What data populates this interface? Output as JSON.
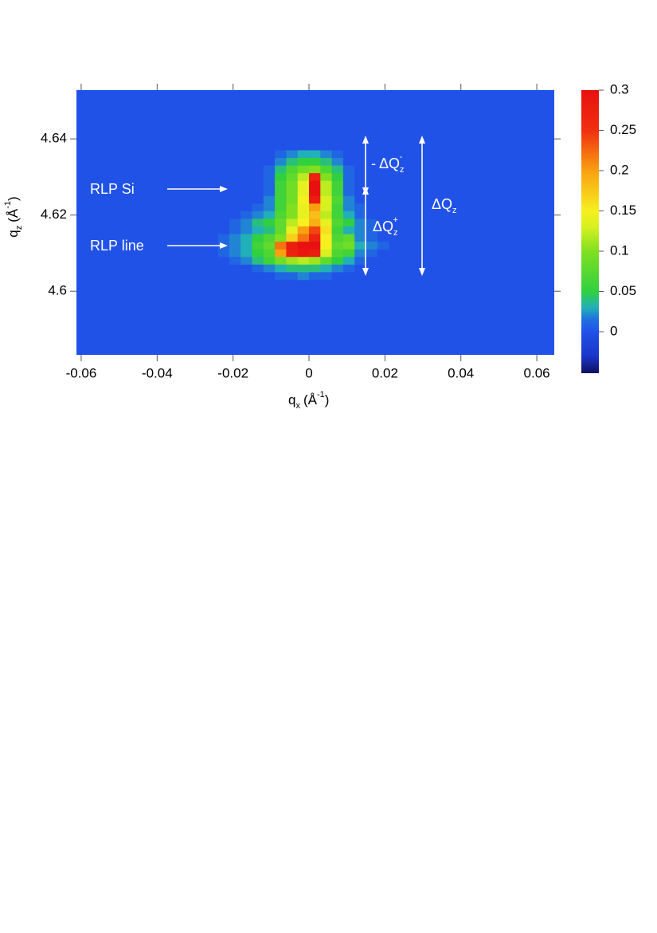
{
  "chart_data": {
    "type": "heatmap",
    "xlabel": {
      "symbol": "q",
      "subscript": "x",
      "unit": "(Å",
      "exponent": "-1",
      "close": ")"
    },
    "ylabel": {
      "symbol": "q",
      "subscript": "z",
      "unit": "(Å",
      "exponent": "-1",
      "close": ")"
    },
    "xlim": [
      -0.06125,
      0.0646
    ],
    "xticks": [
      -0.06,
      -0.04,
      -0.02,
      0,
      0.02,
      0.04,
      0.06
    ],
    "ylim": [
      4.5833,
      4.6528
    ],
    "yticks": [
      4.6,
      4.62,
      4.64
    ],
    "clim": [
      -0.0515,
      0.3
    ],
    "cticks": [
      0,
      0.05,
      0.1,
      0.15,
      0.2,
      0.25,
      0.3
    ],
    "plot_background": "#2152e8",
    "colorscale": [
      {
        "value": -0.05,
        "color": "#10126a"
      },
      {
        "value": -0.03,
        "color": "#1a36c8"
      },
      {
        "value": 0,
        "color": "#2152e8"
      },
      {
        "value": 0.015,
        "color": "#2070e0"
      },
      {
        "value": 0.03,
        "color": "#22b0b8"
      },
      {
        "value": 0.05,
        "color": "#30d040"
      },
      {
        "value": 0.1,
        "color": "#80e020"
      },
      {
        "value": 0.13,
        "color": "#d8f020"
      },
      {
        "value": 0.15,
        "color": "#f6f020"
      },
      {
        "value": 0.2,
        "color": "#f8a010"
      },
      {
        "value": 0.25,
        "color": "#f03010"
      },
      {
        "value": 0.3,
        "color": "#e81010"
      }
    ],
    "x": [
      -0.0225,
      -0.0195,
      -0.0165,
      -0.0135,
      -0.0105,
      -0.0075,
      -0.0045,
      -0.0015,
      0.0015,
      0.0045,
      0.0075,
      0.0105,
      0.0135,
      0.0165,
      0.0195
    ],
    "y": [
      4.636,
      4.634,
      4.632,
      4.63,
      4.628,
      4.626,
      4.624,
      4.622,
      4.62,
      4.618,
      4.616,
      4.614,
      4.612,
      4.61,
      4.608,
      4.606,
      4.604
    ],
    "z": [
      [
        0,
        0,
        0,
        0,
        0,
        0.01,
        0.02,
        0.03,
        0.03,
        0.02,
        0.01,
        0,
        0,
        0,
        0
      ],
      [
        0,
        0,
        0,
        0,
        0,
        0.02,
        0.04,
        0.05,
        0.05,
        0.04,
        0.02,
        0,
        0,
        0,
        0
      ],
      [
        0,
        0,
        0,
        0,
        0.01,
        0.04,
        0.07,
        0.09,
        0.1,
        0.07,
        0.04,
        0.01,
        0,
        0,
        0
      ],
      [
        0,
        0,
        0,
        0,
        0.01,
        0.05,
        0.08,
        0.12,
        0.27,
        0.1,
        0.05,
        0.01,
        0,
        0,
        0
      ],
      [
        0,
        0,
        0,
        0,
        0.01,
        0.06,
        0.09,
        0.14,
        0.3,
        0.12,
        0.06,
        0.01,
        0,
        0,
        0
      ],
      [
        0,
        0,
        0,
        0,
        0.01,
        0.06,
        0.09,
        0.14,
        0.3,
        0.12,
        0.06,
        0.01,
        0,
        0,
        0
      ],
      [
        0,
        0,
        0,
        0,
        0.02,
        0.06,
        0.09,
        0.15,
        0.28,
        0.13,
        0.07,
        0.02,
        0,
        0,
        0
      ],
      [
        0,
        0,
        0,
        0.01,
        0.02,
        0.06,
        0.1,
        0.14,
        0.2,
        0.13,
        0.06,
        0.02,
        0.01,
        0,
        0
      ],
      [
        0,
        0,
        0.01,
        0.02,
        0.03,
        0.07,
        0.1,
        0.14,
        0.18,
        0.12,
        0.06,
        0.03,
        0.01,
        0,
        0
      ],
      [
        0,
        0.01,
        0.02,
        0.04,
        0.05,
        0.08,
        0.12,
        0.15,
        0.19,
        0.14,
        0.07,
        0.05,
        0.02,
        0.01,
        0
      ],
      [
        0,
        0.01,
        0.02,
        0.03,
        0.04,
        0.08,
        0.14,
        0.2,
        0.24,
        0.16,
        0.06,
        0.03,
        0.02,
        0.01,
        0
      ],
      [
        0.01,
        0.02,
        0.03,
        0.05,
        0.07,
        0.1,
        0.17,
        0.22,
        0.27,
        0.15,
        0.07,
        0.08,
        0.02,
        0.01,
        0
      ],
      [
        0.01,
        0.02,
        0.03,
        0.06,
        0.08,
        0.22,
        0.28,
        0.3,
        0.3,
        0.15,
        0.08,
        0.09,
        0.03,
        0.02,
        0.01
      ],
      [
        0.01,
        0.02,
        0.03,
        0.05,
        0.07,
        0.2,
        0.27,
        0.29,
        0.28,
        0.13,
        0.07,
        0.06,
        0.02,
        0.01,
        0
      ],
      [
        0,
        0.01,
        0.02,
        0.04,
        0.06,
        0.09,
        0.11,
        0.12,
        0.11,
        0.08,
        0.05,
        0.03,
        0.01,
        0,
        0
      ],
      [
        0,
        0,
        0,
        0.01,
        0.02,
        0.03,
        0.04,
        0.04,
        0.04,
        0.03,
        0.02,
        0.01,
        0,
        0,
        0
      ],
      [
        0,
        0,
        0,
        0,
        0,
        0.01,
        0.01,
        0.02,
        0.01,
        0.01,
        0,
        0,
        0,
        0,
        0
      ]
    ],
    "annotations": {
      "rlp_si": "RLP Si",
      "rlp_line": "RLP line",
      "dq_minus": {
        "prefix": "- ΔQ",
        "subscript": "z",
        "superscript": "-"
      },
      "dq_plus": {
        "prefix": "ΔQ",
        "subscript": "z",
        "superscript": "+"
      },
      "dq": {
        "prefix": "ΔQ",
        "subscript": "z"
      }
    }
  }
}
